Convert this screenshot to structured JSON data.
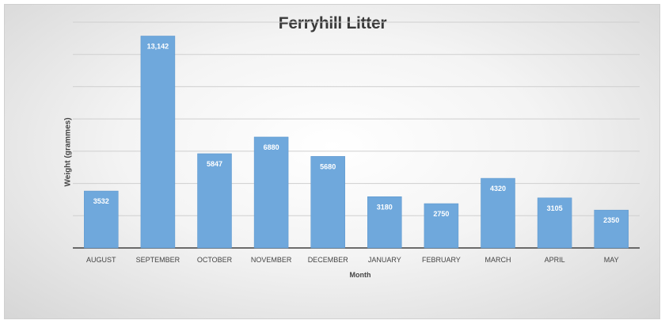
{
  "chart_data": {
    "type": "bar",
    "title": "Ferryhill Litter",
    "xlabel": "Month",
    "ylabel": "Weight (grammes)",
    "categories": [
      "AUGUST",
      "SEPTEMBER",
      "OCTOBER",
      "NOVEMBER",
      "DECEMBER",
      "JANUARY",
      "FEBRUARY",
      "MARCH",
      "APRIL",
      "MAY"
    ],
    "values": [
      3532,
      13142,
      5847,
      6880,
      5680,
      3180,
      2750,
      4320,
      3105,
      2350
    ],
    "data_labels": [
      "3532",
      "13,142",
      "5847",
      "6880",
      "5680",
      "3180",
      "2750",
      "4320",
      "3105",
      "2350"
    ],
    "ylim": [
      0,
      14000
    ],
    "grid": true,
    "bar_color": "#6fa8dc",
    "legend": "none"
  }
}
